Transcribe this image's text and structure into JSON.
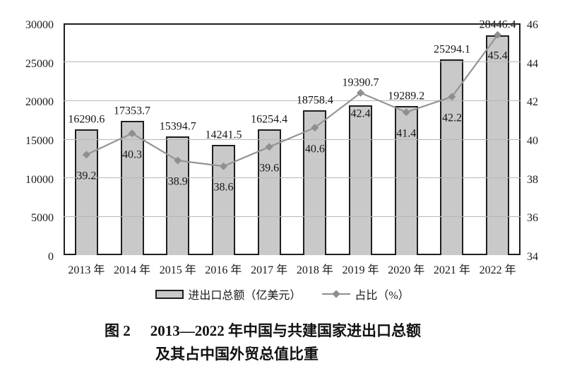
{
  "figure_caption": {
    "label": "图 2",
    "line1": "2013—2022 年中国与共建国家进出口总额",
    "line2": "及其占中国外贸总值比重"
  },
  "chart_data": {
    "type": "combo_bar_line",
    "categories": [
      "2013 年",
      "2014 年",
      "2015 年",
      "2016 年",
      "2017 年",
      "2018 年",
      "2019 年",
      "2020 年",
      "2021 年",
      "2022 年"
    ],
    "series": [
      {
        "name": "进出口总额（亿美元）",
        "type": "bar",
        "axis": "left",
        "values": [
          16290.6,
          17353.7,
          15394.7,
          14241.5,
          16254.4,
          18758.4,
          19390.7,
          19289.2,
          25294.1,
          28446.4
        ]
      },
      {
        "name": "占比（%）",
        "type": "line",
        "axis": "right",
        "values": [
          39.2,
          40.3,
          38.9,
          38.6,
          39.6,
          40.6,
          42.4,
          41.4,
          42.2,
          45.4
        ]
      }
    ],
    "left_axis": {
      "min": 0,
      "max": 30000,
      "step": 5000,
      "ticks": [
        0,
        5000,
        10000,
        15000,
        20000,
        25000,
        30000
      ]
    },
    "right_axis": {
      "min": 34,
      "max": 46,
      "step": 2,
      "ticks": [
        34,
        36,
        38,
        40,
        42,
        44,
        46
      ]
    },
    "grid": true,
    "legend_position": "bottom",
    "data_labels": true,
    "colors": {
      "bar_fill": "#c9c9c9",
      "bar_border": "#1f1f1f",
      "line": "#949494",
      "marker": "#8f8f8f",
      "grid": "#b7b7b7",
      "axis": "#1f1f1f",
      "text": "#1a1a1a",
      "background": "#ffffff"
    }
  }
}
